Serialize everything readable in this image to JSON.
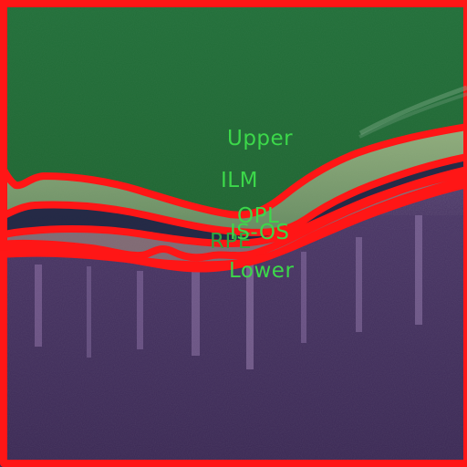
{
  "image": {
    "labels": {
      "upper": "Upper",
      "ilm": "ILM",
      "opl": "OPL",
      "rpe": "RPE",
      "is_os": "IS-OS",
      "lower": "Lower"
    },
    "colors": {
      "upper_region": "#1f6b36",
      "band": "#8fba73",
      "boundary": "#ff1a1a",
      "retina_background": "#3d2a57",
      "text": "#3cd84a"
    }
  }
}
